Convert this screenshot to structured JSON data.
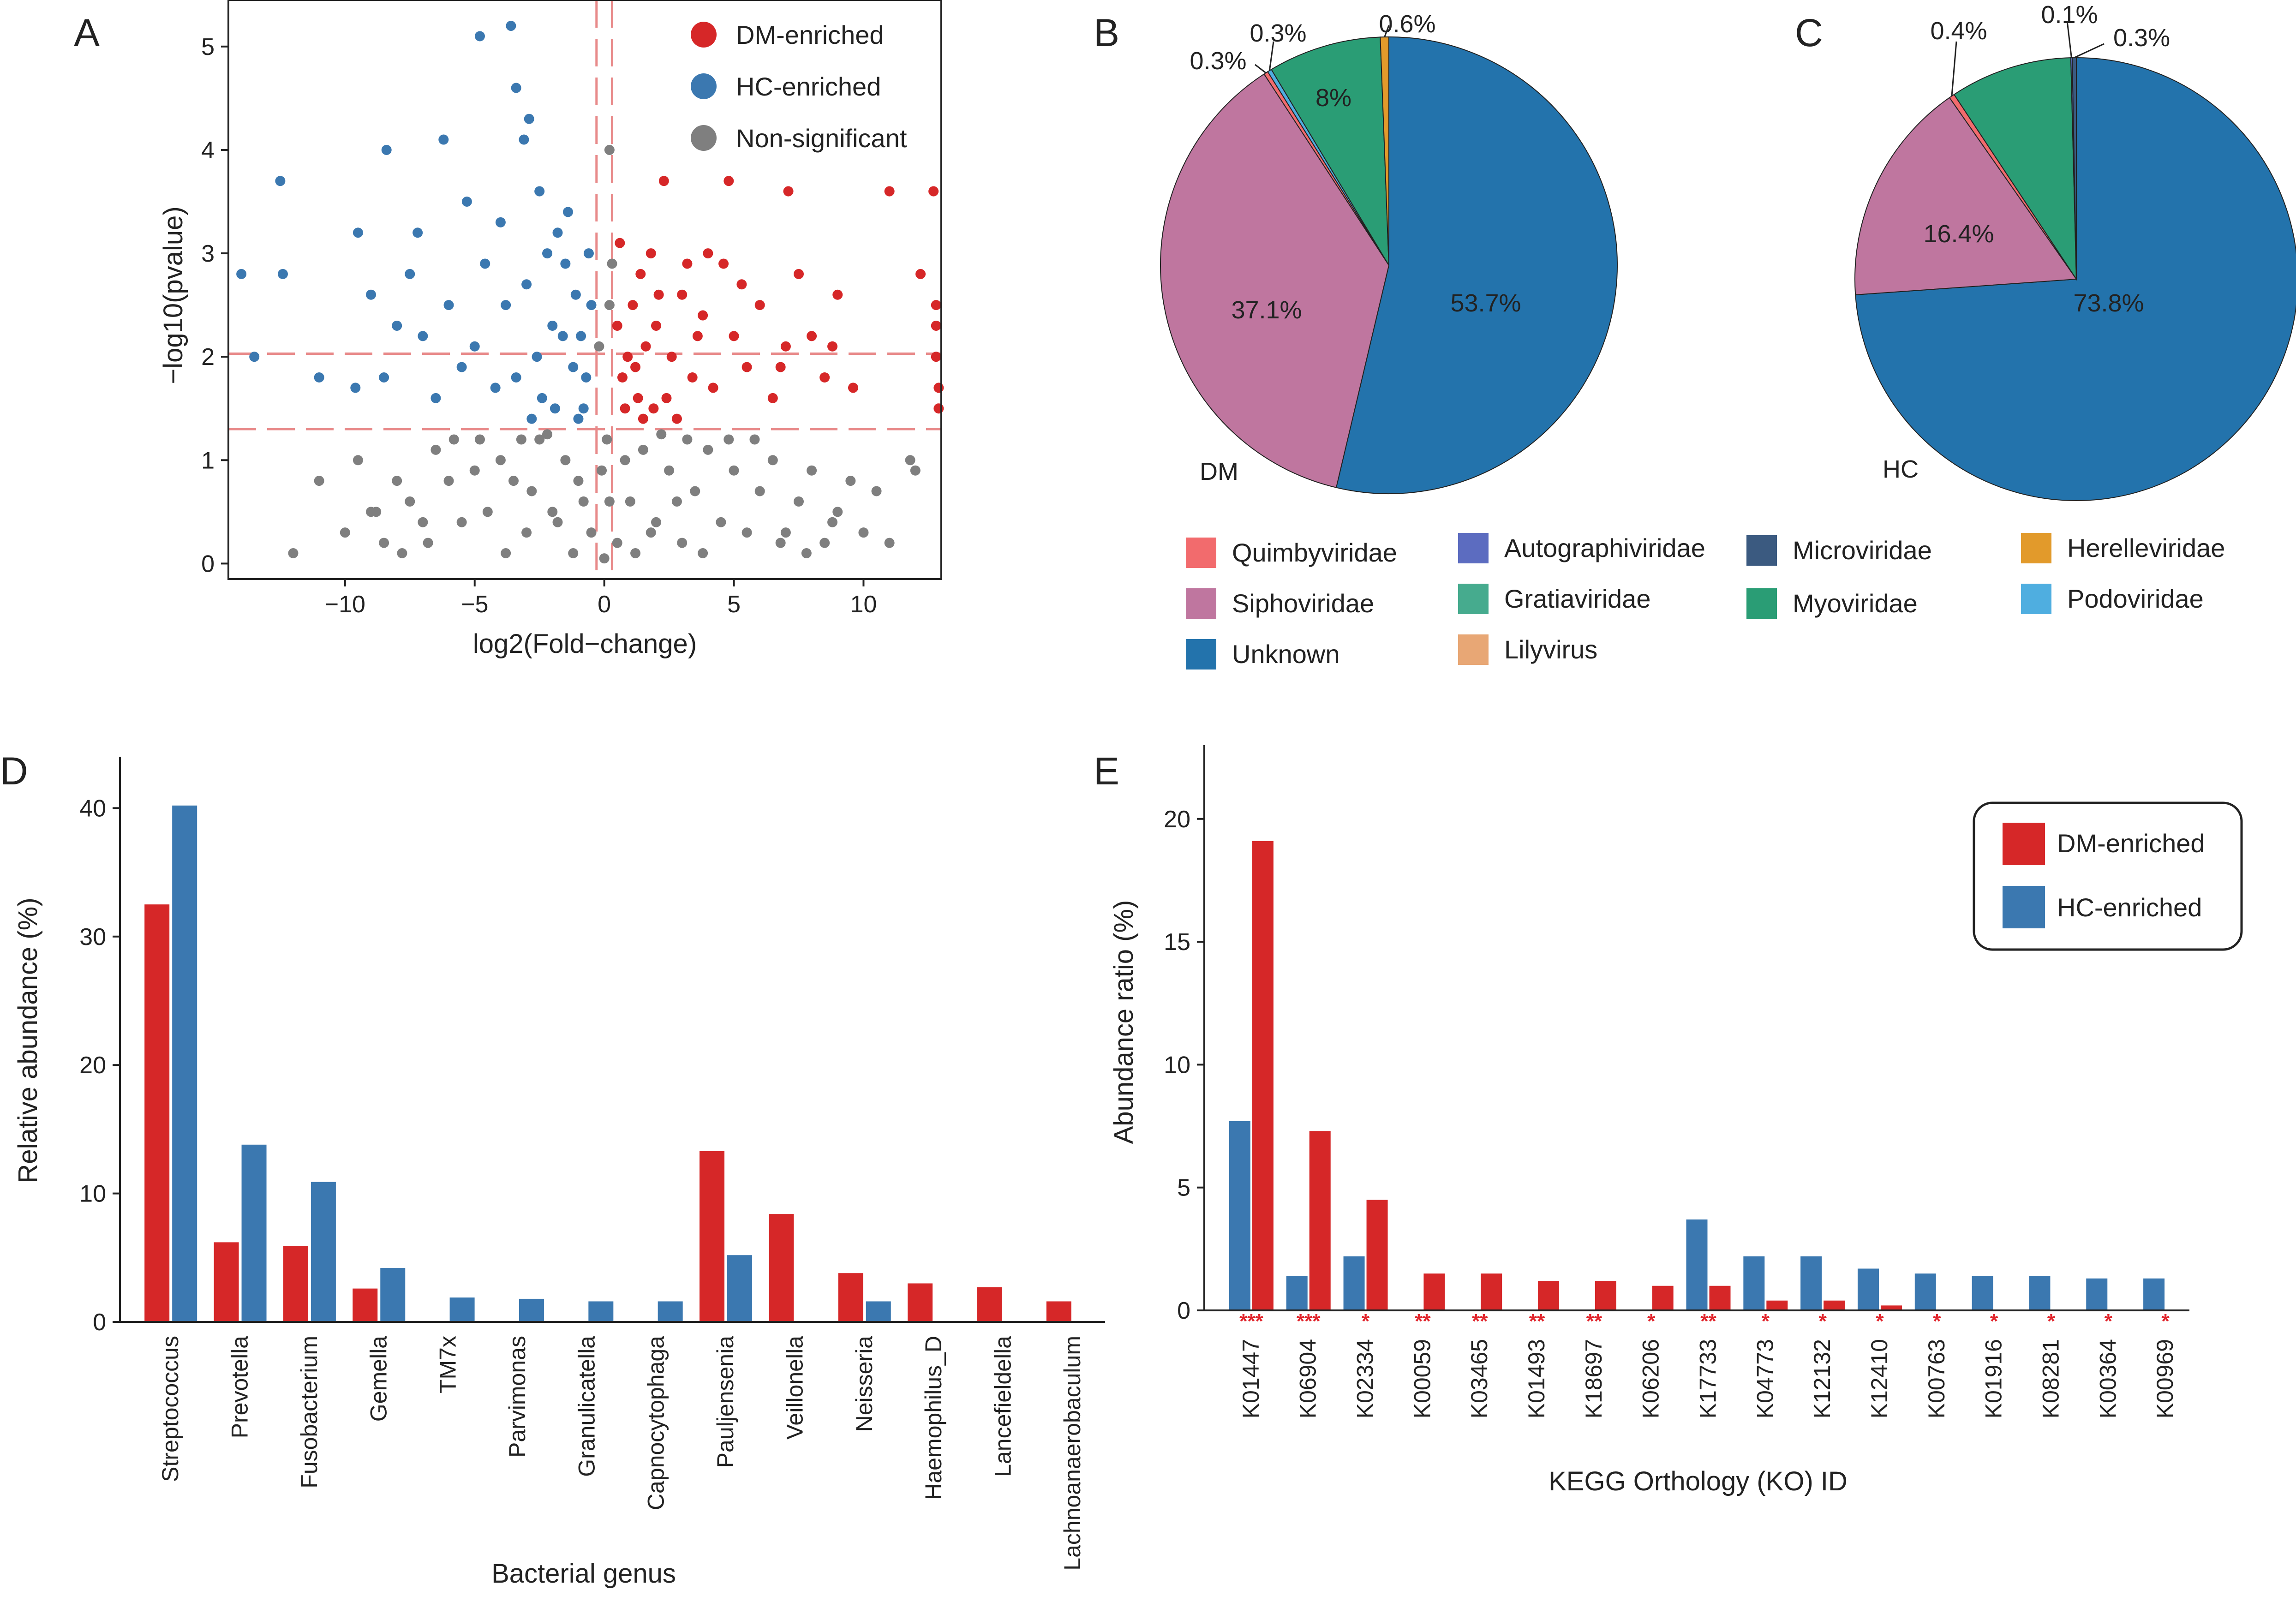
{
  "colors": {
    "dm": "#d62728",
    "hc": "#3b78b0",
    "ns": "#7f7f7f",
    "threshold": "#e88a8a",
    "star": "#e0242b"
  },
  "chart_data": [
    {
      "panel": "A",
      "type": "scatter",
      "title": "",
      "xlabel": "log2(Fold−change)",
      "ylabel": "−log10(pvalue)",
      "xlim": [
        -14.5,
        13
      ],
      "ylim": [
        -0.15,
        5.45
      ],
      "xticks": [
        -10,
        -5,
        0,
        5,
        10
      ],
      "xtick_labels": [
        "−10",
        "−5",
        "0",
        "5",
        "10"
      ],
      "yticks": [
        0,
        1,
        2,
        3,
        4,
        5
      ],
      "ytick_labels": [
        "0",
        "1",
        "2",
        "3",
        "4",
        "5"
      ],
      "threshold_lines": {
        "x": [
          -0.3,
          0.3
        ],
        "y": [
          1.3,
          2.03
        ]
      },
      "legend": [
        "DM-enriched",
        "HC-enriched",
        "Non-significant"
      ],
      "legend_position": "top-right",
      "series": [
        {
          "name": "DM-enriched",
          "color_key": "dm",
          "points": [
            [
              0.8,
              1.5
            ],
            [
              1.2,
              1.9
            ],
            [
              1.6,
              2.1
            ],
            [
              1.1,
              2.5
            ],
            [
              2.0,
              2.3
            ],
            [
              2.4,
              1.6
            ],
            [
              1.4,
              2.8
            ],
            [
              2.6,
              2.0
            ],
            [
              3.0,
              2.6
            ],
            [
              0.6,
              3.1
            ],
            [
              1.8,
              3.0
            ],
            [
              3.4,
              1.8
            ],
            [
              3.8,
              2.4
            ],
            [
              4.2,
              1.7
            ],
            [
              4.6,
              2.9
            ],
            [
              5.0,
              2.2
            ],
            [
              5.5,
              1.9
            ],
            [
              6.0,
              2.5
            ],
            [
              6.5,
              1.6
            ],
            [
              7.0,
              2.1
            ],
            [
              7.5,
              2.8
            ],
            [
              8.0,
              2.2
            ],
            [
              8.5,
              1.8
            ],
            [
              9.0,
              2.6
            ],
            [
              9.6,
              1.7
            ],
            [
              2.3,
              3.7
            ],
            [
              4.8,
              3.7
            ],
            [
              7.1,
              3.6
            ],
            [
              11.0,
              3.6
            ],
            [
              12.7,
              3.6
            ],
            [
              12.2,
              2.8
            ],
            [
              12.8,
              2.5
            ],
            [
              12.8,
              2.3
            ],
            [
              12.8,
              2.0
            ],
            [
              12.9,
              1.7
            ],
            [
              12.9,
              1.5
            ],
            [
              0.9,
              2.0
            ],
            [
              1.3,
              1.6
            ],
            [
              0.7,
              1.8
            ],
            [
              1.9,
              1.5
            ],
            [
              2.8,
              1.4
            ],
            [
              3.2,
              2.9
            ],
            [
              5.3,
              2.7
            ],
            [
              6.8,
              1.9
            ],
            [
              8.8,
              2.1
            ],
            [
              0.5,
              2.3
            ],
            [
              1.5,
              1.4
            ],
            [
              2.1,
              2.6
            ],
            [
              3.6,
              2.2
            ],
            [
              4.0,
              3.0
            ]
          ]
        },
        {
          "name": "HC-enriched",
          "color_key": "hc",
          "points": [
            [
              -0.8,
              1.5
            ],
            [
              -1.2,
              1.9
            ],
            [
              -1.6,
              2.2
            ],
            [
              -1.1,
              2.6
            ],
            [
              -2.0,
              2.3
            ],
            [
              -2.4,
              1.6
            ],
            [
              -1.5,
              2.9
            ],
            [
              -2.6,
              2.0
            ],
            [
              -3.0,
              2.7
            ],
            [
              -0.6,
              3.0
            ],
            [
              -1.8,
              3.2
            ],
            [
              -3.4,
              1.8
            ],
            [
              -3.8,
              2.5
            ],
            [
              -4.2,
              1.7
            ],
            [
              -4.6,
              2.9
            ],
            [
              -5.0,
              2.1
            ],
            [
              -5.5,
              1.9
            ],
            [
              -6.0,
              2.5
            ],
            [
              -6.5,
              1.6
            ],
            [
              -7.0,
              2.2
            ],
            [
              -7.5,
              2.8
            ],
            [
              -8.0,
              2.3
            ],
            [
              -8.5,
              1.8
            ],
            [
              -9.0,
              2.6
            ],
            [
              -9.6,
              1.7
            ],
            [
              -2.5,
              3.6
            ],
            [
              -3.1,
              4.1
            ],
            [
              -3.6,
              5.2
            ],
            [
              -4.8,
              5.1
            ],
            [
              -3.4,
              4.6
            ],
            [
              -6.2,
              4.1
            ],
            [
              -8.4,
              4.0
            ],
            [
              -12.5,
              3.7
            ],
            [
              -9.5,
              3.2
            ],
            [
              -14.0,
              2.8
            ],
            [
              -12.4,
              2.8
            ],
            [
              -13.5,
              2.0
            ],
            [
              -11.0,
              1.8
            ],
            [
              -2.9,
              4.3
            ],
            [
              -1.4,
              3.4
            ],
            [
              -0.9,
              2.2
            ],
            [
              -0.5,
              2.5
            ],
            [
              -2.2,
              3.0
            ],
            [
              -4.0,
              3.3
            ],
            [
              -5.3,
              3.5
            ],
            [
              -7.2,
              3.2
            ],
            [
              -1.0,
              1.4
            ],
            [
              -1.9,
              1.5
            ],
            [
              -2.8,
              1.4
            ],
            [
              -0.7,
              1.8
            ]
          ]
        },
        {
          "name": "Non-significant",
          "color_key": "ns",
          "points": [
            [
              0.0,
              0.05
            ],
            [
              0.5,
              0.2
            ],
            [
              -0.5,
              0.3
            ],
            [
              1.0,
              0.6
            ],
            [
              -1.0,
              0.8
            ],
            [
              1.5,
              1.1
            ],
            [
              -1.5,
              1.0
            ],
            [
              2.0,
              0.4
            ],
            [
              -2.0,
              0.5
            ],
            [
              2.5,
              0.9
            ],
            [
              -2.5,
              1.2
            ],
            [
              3.0,
              0.2
            ],
            [
              -3.0,
              0.3
            ],
            [
              3.5,
              0.7
            ],
            [
              -3.5,
              0.8
            ],
            [
              4.0,
              1.1
            ],
            [
              -4.0,
              1.0
            ],
            [
              4.5,
              0.4
            ],
            [
              -4.5,
              0.5
            ],
            [
              5.0,
              0.9
            ],
            [
              -5.0,
              0.9
            ],
            [
              5.5,
              0.3
            ],
            [
              -5.5,
              0.4
            ],
            [
              6.0,
              0.7
            ],
            [
              -6.0,
              0.8
            ],
            [
              6.5,
              1.0
            ],
            [
              -6.5,
              1.1
            ],
            [
              7.0,
              0.3
            ],
            [
              -7.0,
              0.4
            ],
            [
              7.5,
              0.6
            ],
            [
              -7.5,
              0.6
            ],
            [
              8.0,
              0.9
            ],
            [
              -8.0,
              0.8
            ],
            [
              8.5,
              0.2
            ],
            [
              -8.5,
              0.2
            ],
            [
              9.0,
              0.5
            ],
            [
              -9.0,
              0.5
            ],
            [
              10.0,
              0.3
            ],
            [
              -10.0,
              0.3
            ],
            [
              11.0,
              0.2
            ],
            [
              -11.0,
              0.8
            ],
            [
              11.8,
              1.0
            ],
            [
              12.0,
              0.9
            ],
            [
              10.5,
              0.7
            ],
            [
              -12.0,
              0.1
            ],
            [
              0.3,
              2.9
            ],
            [
              0.2,
              2.5
            ],
            [
              0.2,
              4.0
            ],
            [
              -0.2,
              2.1
            ],
            [
              0.1,
              1.2
            ],
            [
              -0.1,
              0.9
            ],
            [
              0.2,
              0.6
            ],
            [
              1.2,
              0.1
            ],
            [
              -1.2,
              0.1
            ],
            [
              2.2,
              1.25
            ],
            [
              -2.2,
              1.25
            ],
            [
              3.2,
              1.2
            ],
            [
              -3.2,
              1.2
            ],
            [
              4.8,
              1.2
            ],
            [
              -4.8,
              1.2
            ],
            [
              1.8,
              0.3
            ],
            [
              -1.8,
              0.4
            ],
            [
              0.8,
              1.0
            ],
            [
              -0.8,
              0.6
            ],
            [
              2.8,
              0.6
            ],
            [
              -2.8,
              0.7
            ],
            [
              6.8,
              0.2
            ],
            [
              -6.8,
              0.2
            ],
            [
              9.5,
              0.8
            ],
            [
              -9.5,
              1.0
            ],
            [
              8.8,
              0.4
            ],
            [
              -8.8,
              0.5
            ],
            [
              5.8,
              1.2
            ],
            [
              -5.8,
              1.2
            ],
            [
              7.8,
              0.1
            ],
            [
              -7.8,
              0.1
            ],
            [
              3.8,
              0.1
            ],
            [
              -3.8,
              0.1
            ]
          ]
        }
      ]
    },
    {
      "panel": "B",
      "type": "pie",
      "title": "",
      "center_label": "DM",
      "slices": [
        {
          "label": "Unknown",
          "value": 53.7,
          "color": "#2373ac",
          "pct_label": "53.7%"
        },
        {
          "label": "Siphoviridae",
          "value": 37.1,
          "color": "#bf769f",
          "pct_label": "37.1%"
        },
        {
          "label": "Quimbyviridae",
          "value": 0.3,
          "color": "#f26b6d",
          "pct_label": "0.3%"
        },
        {
          "label": "Podoviridae",
          "value": 0.3,
          "color": "#4faee0",
          "pct_label": "0.3%"
        },
        {
          "label": "Myoviridae",
          "value": 8.0,
          "color": "#2a9d75",
          "pct_label": "8%"
        },
        {
          "label": "Microviridae",
          "value": 0.0,
          "color": "#3b5a80",
          "pct_label": ""
        },
        {
          "label": "Herelleviridae",
          "value": 0.6,
          "color": "#e29a2b",
          "pct_label": "0.6%"
        }
      ]
    },
    {
      "panel": "C",
      "type": "pie",
      "title": "",
      "center_label": "HC",
      "slices": [
        {
          "label": "Unknown",
          "value": 73.8,
          "color": "#2373ac",
          "pct_label": "73.8%"
        },
        {
          "label": "Siphoviridae",
          "value": 16.4,
          "color": "#bf769f",
          "pct_label": "16.4%"
        },
        {
          "label": "Quimbyviridae",
          "value": 0.4,
          "color": "#f26b6d",
          "pct_label": "0.4%"
        },
        {
          "label": "Myoviridae",
          "value": 8.9,
          "color": "#2a9d75",
          "pct_label": ""
        },
        {
          "label": "Autographiviridae",
          "value": 0.1,
          "color": "#5c6cc0",
          "pct_label": "0.1%"
        },
        {
          "label": "Microviridae",
          "value": 0.3,
          "color": "#3b5a80",
          "pct_label": "0.3%"
        }
      ]
    },
    {
      "panel": "D",
      "type": "bar",
      "title": "",
      "xlabel": "Bacterial genus",
      "ylabel": "Relative abundance (%)",
      "ylim": [
        0,
        44
      ],
      "yticks": [
        0,
        10,
        20,
        30,
        40
      ],
      "categories": [
        "Streptococcus",
        "Prevotella",
        "Fusobacterium",
        "Gemella",
        "TM7x",
        "Parvimonas",
        "Granulicatella",
        "Capnocytophaga",
        "Pauljensenia",
        "Veillonella",
        "Neisseria",
        "Haemophilus_D",
        "Lancefieldella",
        "Lachnoanaerobaculum"
      ],
      "series": [
        {
          "name": "DM",
          "color_key": "dm",
          "values": [
            32.5,
            6.2,
            5.9,
            2.6,
            null,
            null,
            null,
            null,
            13.3,
            8.4,
            3.8,
            3.0,
            2.7,
            1.6
          ]
        },
        {
          "name": "HC",
          "color_key": "hc",
          "values": [
            40.2,
            13.8,
            10.9,
            4.2,
            1.9,
            1.8,
            1.6,
            1.6,
            5.2,
            null,
            1.6,
            null,
            null,
            null
          ]
        }
      ]
    },
    {
      "panel": "E",
      "type": "bar",
      "title": "",
      "xlabel": "KEGG Orthology (KO) ID",
      "ylabel": "Abundance ratio (%)",
      "ylim": [
        0,
        23
      ],
      "yticks": [
        0,
        5,
        10,
        15,
        20
      ],
      "categories": [
        "K01447",
        "K06904",
        "K02334",
        "K00059",
        "K03465",
        "K01493",
        "K18697",
        "K06206",
        "K17733",
        "K04773",
        "K12132",
        "K12410",
        "K00763",
        "K01916",
        "K08281",
        "K00364",
        "K00969"
      ],
      "significance": [
        "***",
        "***",
        "*",
        "**",
        "**",
        "**",
        "**",
        "*",
        "**",
        "*",
        "*",
        "*",
        "*",
        "*",
        "*",
        "*",
        "*"
      ],
      "legend": [
        "DM-enriched",
        "HC-enriched"
      ],
      "legend_position": "top-right",
      "series": [
        {
          "name": "HC-enriched",
          "color_key": "hc",
          "values": [
            7.7,
            1.4,
            2.2,
            null,
            null,
            null,
            null,
            null,
            3.7,
            2.2,
            2.2,
            1.7,
            1.5,
            1.4,
            1.4,
            1.3,
            1.3
          ]
        },
        {
          "name": "DM-enriched",
          "color_key": "dm",
          "values": [
            19.1,
            7.3,
            4.5,
            1.5,
            1.5,
            1.2,
            1.2,
            1.0,
            1.0,
            0.4,
            0.4,
            0.2,
            null,
            null,
            null,
            null,
            null
          ]
        }
      ]
    }
  ],
  "panel_labels": [
    "A",
    "B",
    "C",
    "D",
    "E"
  ],
  "pie_legend": [
    {
      "label": "Quimbyviridae",
      "color": "#f26b6d"
    },
    {
      "label": "Autographiviridae",
      "color": "#5c6cc0"
    },
    {
      "label": "Microviridae",
      "color": "#3b5a80"
    },
    {
      "label": "Herelleviridae",
      "color": "#e29a2b"
    },
    {
      "label": "Siphoviridae",
      "color": "#bf769f"
    },
    {
      "label": "Gratiaviridae",
      "color": "#46ab8e"
    },
    {
      "label": "Myoviridae",
      "color": "#2a9d75"
    },
    {
      "label": "Podoviridae",
      "color": "#4faee0"
    },
    {
      "label": "Unknown",
      "color": "#2373ac"
    },
    {
      "label": "Lilyvirus",
      "color": "#e8a775"
    }
  ]
}
